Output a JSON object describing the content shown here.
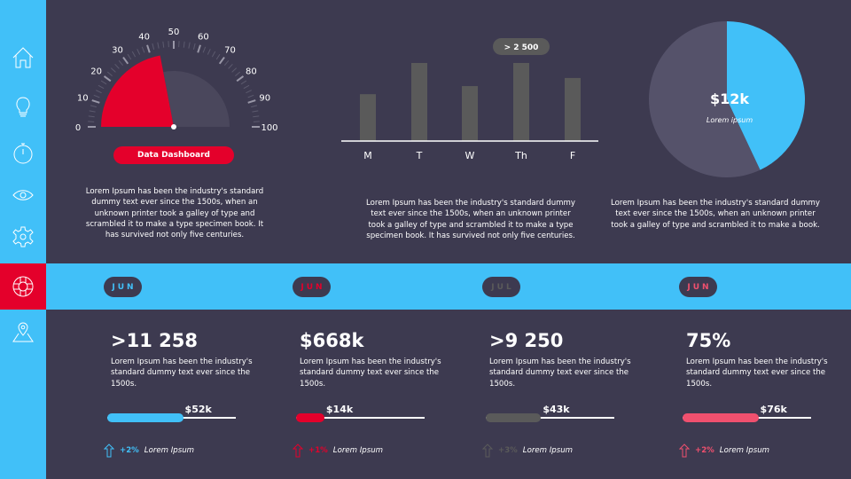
{
  "colors": {
    "background": "#3d3a50",
    "accent_blue": "#41c0f8",
    "accent_red": "#e4002b",
    "gray": "#5a5a5a",
    "pink": "#f0506e",
    "gauge_track": "#4a475c"
  },
  "sidebar": {
    "items": [
      {
        "icon": "home-icon",
        "active": false
      },
      {
        "icon": "lightbulb-icon",
        "active": false
      },
      {
        "icon": "stopwatch-icon",
        "active": false
      },
      {
        "icon": "eye-icon",
        "active": false
      },
      {
        "icon": "gear-icon",
        "active": false
      },
      {
        "icon": "lifebuoy-icon",
        "active": true
      },
      {
        "icon": "map-pin-icon",
        "active": false
      }
    ]
  },
  "gauge": {
    "ticks": [
      "0",
      "10",
      "20",
      "30",
      "40",
      "50",
      "60",
      "70",
      "80",
      "90",
      "100"
    ],
    "value": 44,
    "min": 0,
    "max": 100,
    "button_label": "Data Dashboard",
    "text": "Lorem Ipsum has been the industry's standard dummy text ever since the 1500s, when an unknown printer took a galley of type and scrambled it to make a type specimen book. It has survived not only five centuries."
  },
  "chart_data": [
    {
      "type": "bar",
      "categories": [
        "M",
        "T",
        "W",
        "Th",
        "F"
      ],
      "values": [
        1500,
        2500,
        1760,
        2500,
        2020
      ],
      "annotation": "> 2 500",
      "annotation_category": "Th",
      "ylim": [
        0,
        2500
      ]
    },
    {
      "type": "pie",
      "slices": [
        {
          "label": "$12k",
          "sublabel": "Lorem ipsum",
          "value": 43,
          "color": "#41c0f8"
        },
        {
          "value": 57,
          "color": "#55526a"
        }
      ]
    }
  ],
  "bar_text": "Lorem Ipsum has been the industry's standard dummy text ever since the 1500s, when an unknown printer took a galley of type and scrambled it to make a type specimen book. It has survived not only five centuries.",
  "pie_text": "Lorem Ipsum has been the industry's standard dummy text ever since the 1500s, when an unknown printer took a galley of type and scrambled it to make a book.",
  "cards": [
    {
      "month": "JUN",
      "month_color": "#41c0f8",
      "value": ">11 258",
      "text": "Lorem Ipsum has been the industry's standard dummy text ever since the 1500s.",
      "progress_label": "$52k",
      "progress": 0.59,
      "color": "#41c0f8",
      "change": "+2%",
      "change_label": "Lorem Ipsum"
    },
    {
      "month": "JUN",
      "month_color": "#e4002b",
      "value": "$668k",
      "text": "Lorem Ipsum has been the industry's standard dummy text ever since the 1500s.",
      "progress_label": "$14k",
      "progress": 0.22,
      "color": "#e4002b",
      "change": "+1%",
      "change_label": "Lorem Ipsum"
    },
    {
      "month": "JUL",
      "month_color": "#5a5a5a",
      "value": ">9 250",
      "text": "Lorem Ipsum has been the industry's standard dummy text ever since the 1500s.",
      "progress_label": "$43k",
      "progress": 0.43,
      "color": "#5a5a5a",
      "change": "+3%",
      "change_label": "Lorem Ipsum"
    },
    {
      "month": "JUN",
      "month_color": "#f0506e",
      "value": "75%",
      "text": "Lorem Ipsum has been the industry's standard dummy text ever since the 1500s.",
      "progress_label": "$76k",
      "progress": 0.59,
      "color": "#f0506e",
      "change": "+2%",
      "change_label": "Lorem Ipsum"
    }
  ]
}
